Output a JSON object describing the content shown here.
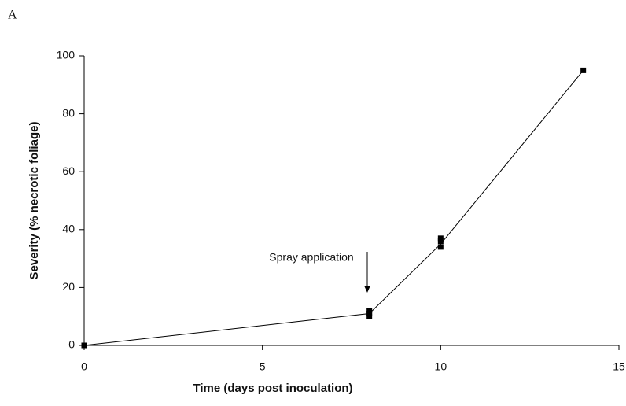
{
  "chart_data": {
    "type": "line",
    "panel_label": "A",
    "x_label": "Time (days post inoculation)",
    "y_label": "Severity (% necrotic foliage)",
    "annotation": "Spray application",
    "x": [
      0,
      8,
      10,
      14
    ],
    "values": [
      0,
      11,
      35,
      95
    ],
    "color": "#000000",
    "replicates": {
      "x": [
        0,
        8,
        8,
        8,
        10,
        10,
        10,
        14
      ],
      "values": [
        0,
        12,
        11,
        10,
        34,
        36,
        37,
        95
      ]
    },
    "xlim": [
      0,
      15
    ],
    "xticks": [
      0,
      5,
      10,
      15
    ],
    "ylim": [
      0,
      100
    ],
    "yticks": [
      0,
      20,
      40,
      60,
      80,
      100
    ],
    "grid": false
  }
}
